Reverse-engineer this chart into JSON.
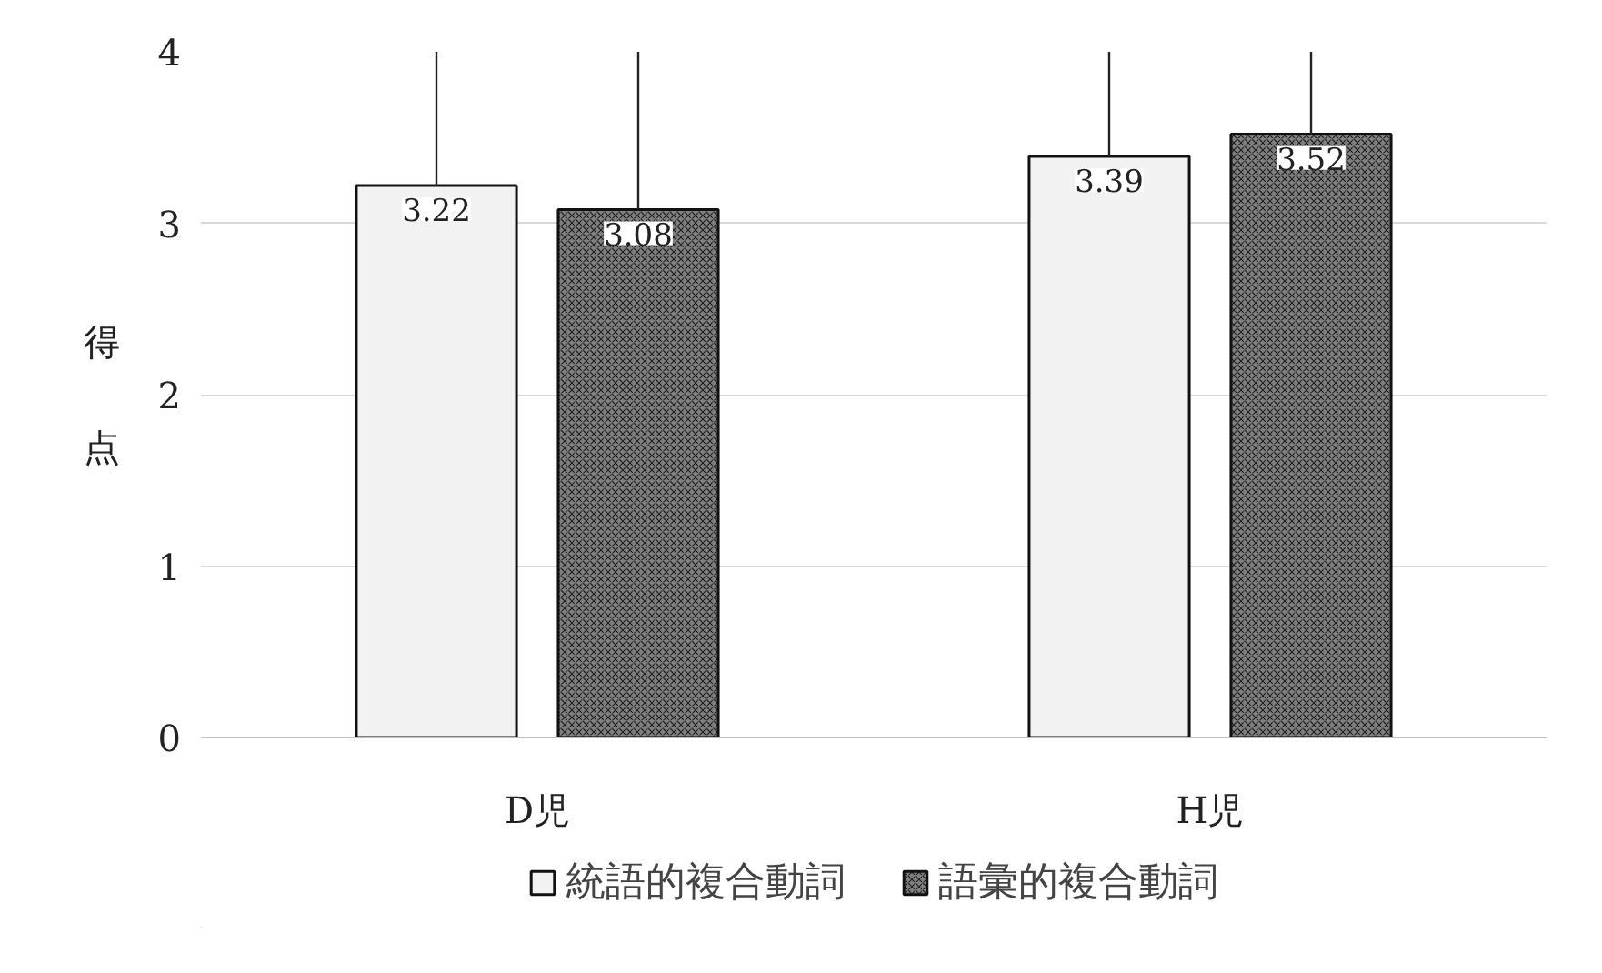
{
  "chart_data": {
    "type": "bar",
    "ylabel": "得点",
    "categories": [
      "D児",
      "H児"
    ],
    "series": [
      {
        "name": "統語的複合動詞",
        "color": "#f2f2f2",
        "values": [
          3.22,
          3.39
        ],
        "errors": [
          [
            3.22,
            4
          ],
          [
            3.39,
            4
          ]
        ]
      },
      {
        "name": "語彙的複合動詞",
        "color": "#7f7f7f",
        "values": [
          3.08,
          3.52
        ],
        "errors": [
          [
            3.08,
            4
          ],
          [
            3.52,
            4
          ]
        ]
      }
    ],
    "ylim": [
      0,
      4
    ],
    "yticks": [
      0,
      1,
      2,
      3,
      4
    ],
    "grid": "y",
    "legend": "bottom",
    "data_labels": true
  }
}
